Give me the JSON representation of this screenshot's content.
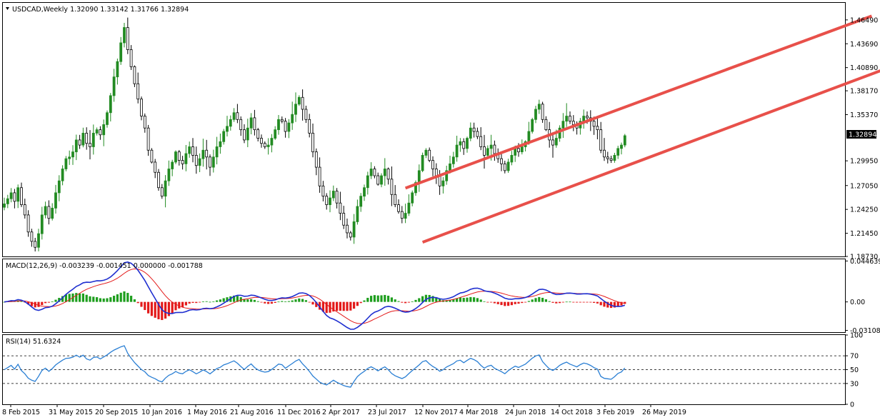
{
  "symbol_header": "USDCAD,Weekly  1.32090 1.33142 1.31766 1.32894",
  "current_price": "1.32894",
  "colors": {
    "bull_candle": "#228b22",
    "bear_candle": "#000000",
    "trendline": "#e8504a",
    "macd_line": "#1f2fd0",
    "signal_line": "#e31a1a",
    "hist_pos": "#1e9e1e",
    "hist_neg": "#e31a1a",
    "rsi_line": "#2a7fd4"
  },
  "chart_data": [
    {
      "type": "candlestick",
      "title": "USDCAD,Weekly",
      "ohlc_header": [
        "1.32090",
        "1.33142",
        "1.31766",
        "1.32894"
      ],
      "y_ticks": [
        "1.46490",
        "1.43690",
        "1.40890",
        "1.38170",
        "1.35370",
        "1.29950",
        "1.27050",
        "1.24250",
        "1.21450",
        "1.18730"
      ],
      "ylim": [
        1.1873,
        1.4849
      ],
      "x_labels": [
        "8 Feb 2015",
        "31 May 2015",
        "20 Sep 2015",
        "10 Jan 2016",
        "1 May 2016",
        "21 Aug 2016",
        "11 Dec 2016",
        "2 Apr 2017",
        "23 Jul 2017",
        "12 Nov 2017",
        "4 Mar 2018",
        "24 Jun 2018",
        "14 Oct 2018",
        "3 Feb 2019",
        "26 May 2019"
      ],
      "close_series": [
        1.249,
        1.255,
        1.262,
        1.252,
        1.268,
        1.248,
        1.236,
        1.216,
        1.205,
        1.198,
        1.214,
        1.236,
        1.246,
        1.232,
        1.244,
        1.262,
        1.276,
        1.29,
        1.302,
        1.304,
        1.31,
        1.324,
        1.318,
        1.332,
        1.32,
        1.316,
        1.332,
        1.336,
        1.33,
        1.342,
        1.356,
        1.376,
        1.398,
        1.416,
        1.438,
        1.456,
        1.43,
        1.41,
        1.39,
        1.372,
        1.352,
        1.338,
        1.312,
        1.298,
        1.286,
        1.268,
        1.258,
        1.276,
        1.29,
        1.298,
        1.31,
        1.3,
        1.296,
        1.308,
        1.316,
        1.306,
        1.294,
        1.302,
        1.312,
        1.304,
        1.292,
        1.304,
        1.316,
        1.322,
        1.334,
        1.34,
        1.348,
        1.356,
        1.348,
        1.336,
        1.324,
        1.338,
        1.35,
        1.336,
        1.326,
        1.32,
        1.316,
        1.318,
        1.326,
        1.336,
        1.348,
        1.346,
        1.334,
        1.344,
        1.354,
        1.366,
        1.374,
        1.36,
        1.348,
        1.332,
        1.31,
        1.292,
        1.27,
        1.258,
        1.248,
        1.256,
        1.264,
        1.25,
        1.238,
        1.224,
        1.215,
        1.21,
        1.228,
        1.246,
        1.258,
        1.268,
        1.282,
        1.29,
        1.282,
        1.272,
        1.282,
        1.29,
        1.278,
        1.26,
        1.248,
        1.24,
        1.232,
        1.238,
        1.25,
        1.262,
        1.274,
        1.288,
        1.306,
        1.312,
        1.3,
        1.29,
        1.282,
        1.27,
        1.276,
        1.288,
        1.296,
        1.304,
        1.318,
        1.322,
        1.314,
        1.326,
        1.338,
        1.334,
        1.328,
        1.316,
        1.306,
        1.314,
        1.318,
        1.308,
        1.302,
        1.296,
        1.288,
        1.298,
        1.306,
        1.314,
        1.31,
        1.316,
        1.322,
        1.334,
        1.348,
        1.36,
        1.366,
        1.348,
        1.336,
        1.324,
        1.318,
        1.326,
        1.338,
        1.346,
        1.352,
        1.346,
        1.342,
        1.338,
        1.346,
        1.352,
        1.35,
        1.346,
        1.34,
        1.336,
        1.312,
        1.304,
        1.302,
        1.3,
        1.306,
        1.314,
        1.318,
        1.329
      ],
      "trendlines": [
        {
          "from": [
            117,
            1.2675
          ],
          "to": [
            253,
            1.4695
          ]
        },
        {
          "from": [
            122,
            1.204
          ],
          "to": [
            262,
            1.415
          ]
        }
      ]
    },
    {
      "type": "line",
      "title": "MACD(12,26,9)",
      "header": "MACD(12,26,9) -0.003239 -0.001451 0.000000 -0.001788",
      "values": [
        "-0.003239",
        "-0.001451",
        "0.000000",
        "-0.001788"
      ],
      "y_ticks": [
        "0.044639",
        "0.00",
        "-0.031088"
      ],
      "ylim": [
        -0.033,
        0.0465
      ]
    },
    {
      "type": "line",
      "title": "RSI(14)",
      "header": "RSI(14) 51.6324",
      "value": "51.6324",
      "y_ticks": [
        "100",
        "70",
        "50",
        "30",
        "0"
      ],
      "ylim": [
        0,
        100
      ],
      "levels": [
        70,
        50,
        30
      ]
    }
  ]
}
